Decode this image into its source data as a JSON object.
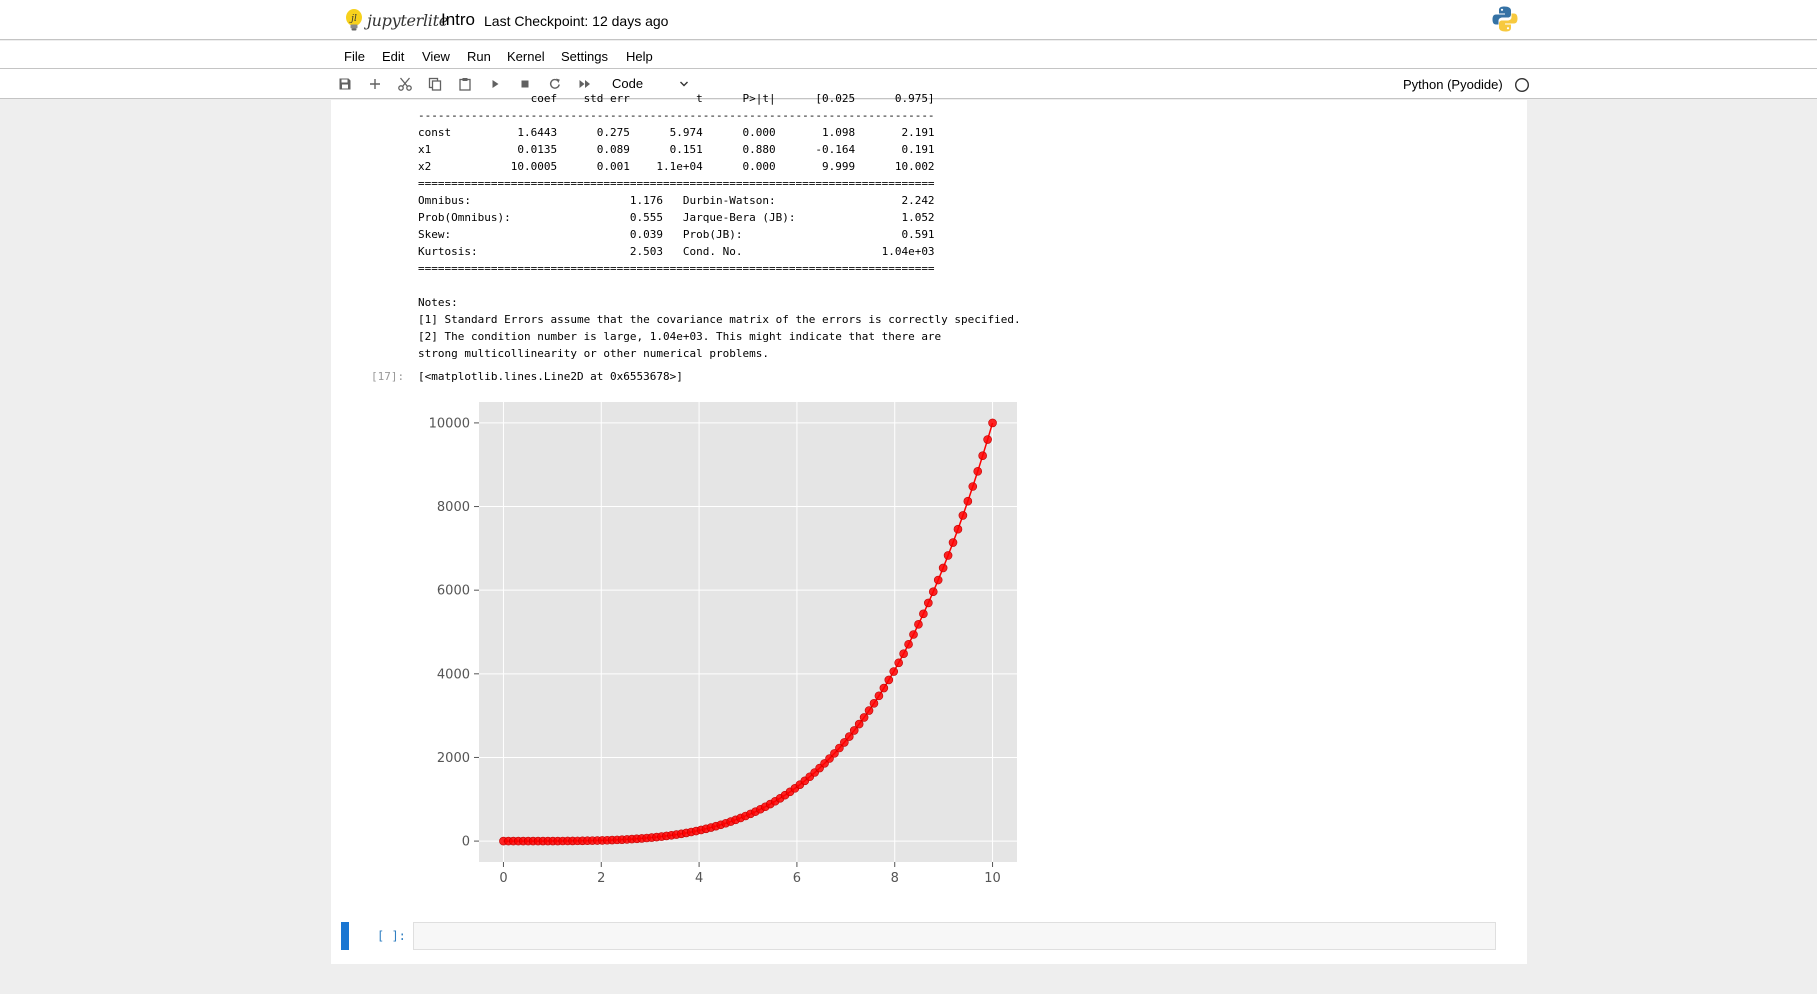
{
  "header": {
    "logo_text": "jupyterlite",
    "notebook_title": "Intro",
    "checkpoint": "Last Checkpoint: 12 days ago"
  },
  "menu": [
    "File",
    "Edit",
    "View",
    "Run",
    "Kernel",
    "Settings",
    "Help"
  ],
  "toolbar": {
    "cell_type": "Code",
    "kernel_name": "Python (Pyodide)",
    "buttons": [
      "save-icon",
      "plus-icon",
      "scissors-icon",
      "copy-icon",
      "paste-icon",
      "play-icon",
      "stop-icon",
      "restart-icon",
      "fast-forward-icon"
    ]
  },
  "output": {
    "summary_text": "                 coef    std err          t      P>|t|      [0.025      0.975]\n------------------------------------------------------------------------------\nconst          1.6443      0.275      5.974      0.000       1.098       2.191\nx1             0.0135      0.089      0.151      0.880      -0.164       0.191\nx2            10.0005      0.001    1.1e+04      0.000       9.999      10.002\n==============================================================================\nOmnibus:                        1.176   Durbin-Watson:                   2.242\nProb(Omnibus):                  0.555   Jarque-Bera (JB):                1.052\nSkew:                           0.039   Prob(JB):                        0.591\nKurtosis:                       2.503   Cond. No.                     1.04e+03\n==============================================================================\n\nNotes:\n[1] Standard Errors assume that the covariance matrix of the errors is correctly specified.\n[2] The condition number is large, 1.04e+03. This might indicate that there are\nstrong multicollinearity or other numerical problems.",
    "prompt_17": "[17]:",
    "line_repr": "[<matplotlib.lines.Line2D at 0x6553678>]"
  },
  "chart_data": {
    "type": "line",
    "function_shown": "y = x^4",
    "x_range": [
      0,
      10
    ],
    "num_points": 100,
    "xlim": [
      -0.5,
      10.5
    ],
    "ylim": [
      -500,
      10500
    ],
    "xticks": [
      0,
      2,
      4,
      6,
      8,
      10
    ],
    "yticks": [
      0,
      2000,
      4000,
      6000,
      8000,
      10000
    ],
    "marker": "o",
    "color": "#ff0000",
    "grid": true,
    "style": "ggplot",
    "title": "",
    "xlabel": "",
    "ylabel": ""
  },
  "empty_cell": {
    "prompt": "[ ]:"
  },
  "colors": {
    "plot_bg": "#e5e5e5",
    "grid": "#ffffff",
    "accent": "#1976d2"
  }
}
